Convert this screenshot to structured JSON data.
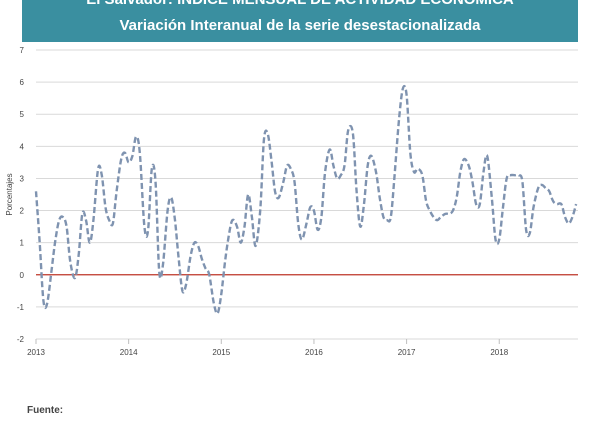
{
  "header": {
    "title_line1": "El Salvador: ÍNDICE MENSUAL DE ACTIVIDAD ECONÓMICA",
    "title_line2": "Variación Interanual de la serie desestacionalizada"
  },
  "footer": {
    "source_label": "Fuente:"
  },
  "chart_data": {
    "type": "line",
    "title": "El Salvador: ÍNDICE MENSUAL DE ACTIVIDAD ECONÓMICA",
    "subtitle": "Variación Interanual de la serie desestacionalizada",
    "ylabel": "Porcentajes",
    "xlabel": "",
    "ylim": [
      -2,
      7
    ],
    "yticks": [
      "-2",
      "-1",
      "0",
      "1",
      "2",
      "3",
      "4",
      "5",
      "6",
      "7"
    ],
    "xlim": [
      2013,
      2018.85
    ],
    "xticks": [
      {
        "value": 2013,
        "label": "2013"
      },
      {
        "value": 2014,
        "label": "2014"
      },
      {
        "value": 2015,
        "label": "2015"
      },
      {
        "value": 2016,
        "label": "2016"
      },
      {
        "value": 2017,
        "label": "2017"
      },
      {
        "value": 2018,
        "label": "2018"
      }
    ],
    "grid": "horizontal",
    "line_color": "#7f93b0",
    "line_style": "dashed",
    "zero_line_color": "#c0392b",
    "series": [
      {
        "points": [
          [
            2013.0,
            2.6
          ],
          [
            2013.04,
            1.0
          ],
          [
            2013.08,
            -0.8
          ],
          [
            2013.12,
            -0.9
          ],
          [
            2013.17,
            0.2
          ],
          [
            2013.21,
            1.1
          ],
          [
            2013.25,
            1.7
          ],
          [
            2013.29,
            1.8
          ],
          [
            2013.33,
            1.5
          ],
          [
            2013.37,
            0.4
          ],
          [
            2013.42,
            -0.1
          ],
          [
            2013.46,
            0.6
          ],
          [
            2013.5,
            1.9
          ],
          [
            2013.54,
            1.7
          ],
          [
            2013.58,
            1.0
          ],
          [
            2013.62,
            1.7
          ],
          [
            2013.67,
            3.3
          ],
          [
            2013.71,
            3.1
          ],
          [
            2013.75,
            2.1
          ],
          [
            2013.79,
            1.7
          ],
          [
            2013.83,
            1.6
          ],
          [
            2013.87,
            2.6
          ],
          [
            2013.92,
            3.6
          ],
          [
            2013.96,
            3.8
          ],
          [
            2014.0,
            3.5
          ],
          [
            2014.04,
            3.7
          ],
          [
            2014.08,
            4.3
          ],
          [
            2014.12,
            3.8
          ],
          [
            2014.17,
            1.5
          ],
          [
            2014.21,
            1.4
          ],
          [
            2014.25,
            3.3
          ],
          [
            2014.29,
            2.9
          ],
          [
            2014.33,
            0.1
          ],
          [
            2014.37,
            0.3
          ],
          [
            2014.42,
            2.0
          ],
          [
            2014.46,
            2.4
          ],
          [
            2014.5,
            1.7
          ],
          [
            2014.54,
            0.5
          ],
          [
            2014.58,
            -0.5
          ],
          [
            2014.62,
            -0.3
          ],
          [
            2014.67,
            0.6
          ],
          [
            2014.71,
            1.0
          ],
          [
            2014.75,
            0.9
          ],
          [
            2014.79,
            0.5
          ],
          [
            2014.83,
            0.2
          ],
          [
            2014.87,
            0.0
          ],
          [
            2014.92,
            -0.9
          ],
          [
            2014.96,
            -1.2
          ],
          [
            2015.0,
            -0.6
          ],
          [
            2015.04,
            0.4
          ],
          [
            2015.08,
            1.2
          ],
          [
            2015.12,
            1.7
          ],
          [
            2015.17,
            1.5
          ],
          [
            2015.21,
            1.0
          ],
          [
            2015.25,
            1.5
          ],
          [
            2015.29,
            2.5
          ],
          [
            2015.33,
            1.8
          ],
          [
            2015.37,
            0.9
          ],
          [
            2015.42,
            2.0
          ],
          [
            2015.46,
            4.2
          ],
          [
            2015.5,
            4.4
          ],
          [
            2015.54,
            3.6
          ],
          [
            2015.58,
            2.6
          ],
          [
            2015.62,
            2.4
          ],
          [
            2015.67,
            2.9
          ],
          [
            2015.71,
            3.4
          ],
          [
            2015.75,
            3.3
          ],
          [
            2015.79,
            2.9
          ],
          [
            2015.83,
            1.6
          ],
          [
            2015.87,
            1.1
          ],
          [
            2015.92,
            1.6
          ],
          [
            2015.96,
            2.1
          ],
          [
            2016.0,
            2.0
          ],
          [
            2016.04,
            1.4
          ],
          [
            2016.08,
            1.8
          ],
          [
            2016.12,
            3.2
          ],
          [
            2016.17,
            3.9
          ],
          [
            2016.21,
            3.4
          ],
          [
            2016.25,
            3.0
          ],
          [
            2016.29,
            3.1
          ],
          [
            2016.33,
            3.4
          ],
          [
            2016.37,
            4.5
          ],
          [
            2016.42,
            4.4
          ],
          [
            2016.46,
            2.6
          ],
          [
            2016.5,
            1.5
          ],
          [
            2016.54,
            2.2
          ],
          [
            2016.58,
            3.4
          ],
          [
            2016.62,
            3.7
          ],
          [
            2016.67,
            3.2
          ],
          [
            2016.71,
            2.4
          ],
          [
            2016.75,
            1.8
          ],
          [
            2016.79,
            1.7
          ],
          [
            2016.83,
            1.8
          ],
          [
            2016.87,
            3.1
          ],
          [
            2016.92,
            4.9
          ],
          [
            2016.96,
            5.8
          ],
          [
            2017.0,
            5.6
          ],
          [
            2017.04,
            3.8
          ],
          [
            2017.08,
            3.2
          ],
          [
            2017.12,
            3.3
          ],
          [
            2017.17,
            3.1
          ],
          [
            2017.21,
            2.3
          ],
          [
            2017.25,
            2.0
          ],
          [
            2017.29,
            1.8
          ],
          [
            2017.33,
            1.7
          ],
          [
            2017.37,
            1.8
          ],
          [
            2017.42,
            1.9
          ],
          [
            2017.46,
            1.9
          ],
          [
            2017.5,
            2.0
          ],
          [
            2017.54,
            2.4
          ],
          [
            2017.58,
            3.2
          ],
          [
            2017.62,
            3.6
          ],
          [
            2017.67,
            3.4
          ],
          [
            2017.71,
            2.9
          ],
          [
            2017.75,
            2.2
          ],
          [
            2017.79,
            2.2
          ],
          [
            2017.83,
            3.2
          ],
          [
            2017.87,
            3.7
          ],
          [
            2017.92,
            2.4
          ],
          [
            2017.96,
            1.1
          ],
          [
            2018.0,
            1.1
          ],
          [
            2018.04,
            2.1
          ],
          [
            2018.08,
            3.0
          ],
          [
            2018.12,
            3.1
          ],
          [
            2018.17,
            3.1
          ],
          [
            2018.21,
            3.1
          ],
          [
            2018.25,
            2.9
          ],
          [
            2018.29,
            1.4
          ],
          [
            2018.33,
            1.3
          ],
          [
            2018.37,
            2.1
          ],
          [
            2018.42,
            2.7
          ],
          [
            2018.46,
            2.8
          ],
          [
            2018.5,
            2.7
          ],
          [
            2018.54,
            2.6
          ],
          [
            2018.58,
            2.3
          ],
          [
            2018.62,
            2.2
          ],
          [
            2018.67,
            2.2
          ],
          [
            2018.71,
            1.8
          ],
          [
            2018.75,
            1.6
          ],
          [
            2018.79,
            1.8
          ],
          [
            2018.83,
            2.2
          ]
        ]
      }
    ]
  }
}
